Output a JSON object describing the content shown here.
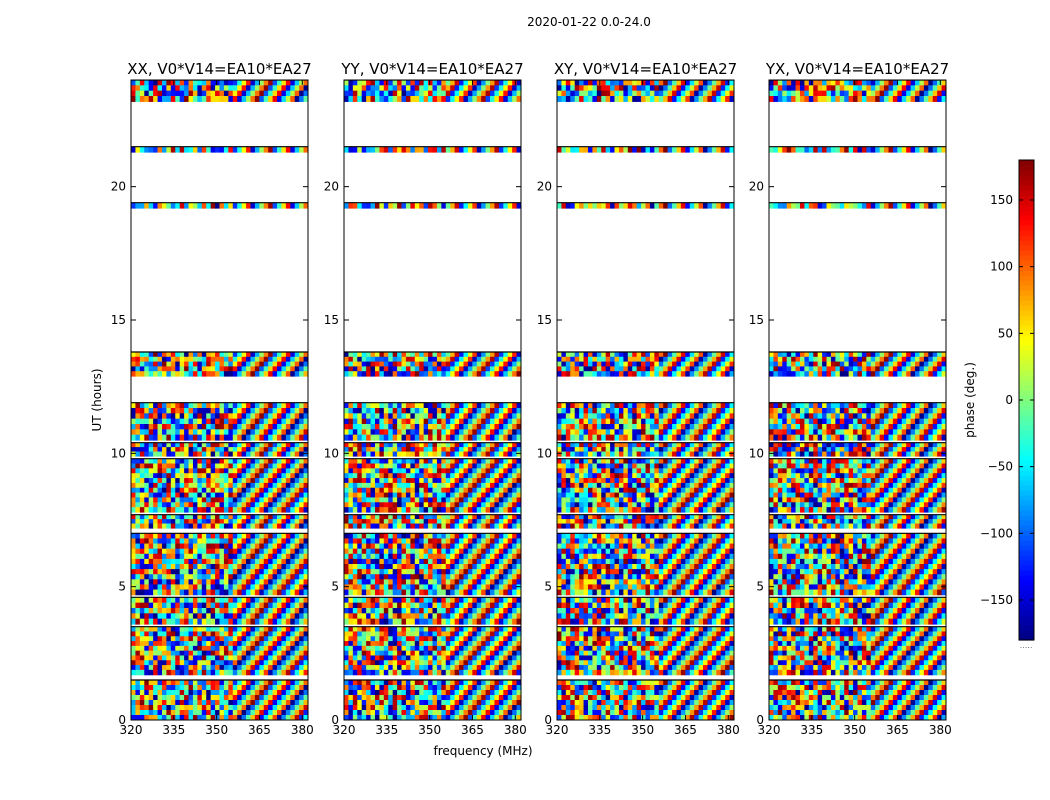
{
  "chart_data": {
    "type": "heatmap",
    "suptitle": "2020-01-22 0.0-24.0",
    "xlabel": "frequency (MHz)",
    "ylabel": "UT (hours)",
    "xlim": [
      320,
      382
    ],
    "ylim": [
      0,
      24
    ],
    "xticks": [
      320,
      335,
      350,
      365,
      380
    ],
    "yticks": [
      0,
      5,
      10,
      15,
      20
    ],
    "panels": [
      {
        "title": "XX, V0*V14=EA10*EA27"
      },
      {
        "title": "YY, V0*V14=EA10*EA27"
      },
      {
        "title": "XY, V0*V14=EA10*EA27"
      },
      {
        "title": "YX, V0*V14=EA10*EA27"
      }
    ],
    "data_blocks_ut_hours": [
      [
        0.0,
        1.5
      ],
      [
        1.7,
        3.5
      ],
      [
        3.6,
        4.6
      ],
      [
        4.7,
        7.0
      ],
      [
        7.2,
        7.7
      ],
      [
        7.8,
        9.8
      ],
      [
        9.9,
        10.4
      ],
      [
        10.5,
        11.9
      ],
      [
        12.9,
        13.8
      ],
      [
        19.2,
        19.4
      ],
      [
        21.3,
        21.5
      ],
      [
        23.2,
        24.0
      ]
    ],
    "colorbar": {
      "label": "phase (deg.)",
      "range": [
        -180,
        180
      ],
      "ticks": [
        150,
        100,
        50,
        0,
        -50,
        -100,
        -150
      ],
      "colormap": "jet",
      "bottom_label": "....."
    }
  }
}
